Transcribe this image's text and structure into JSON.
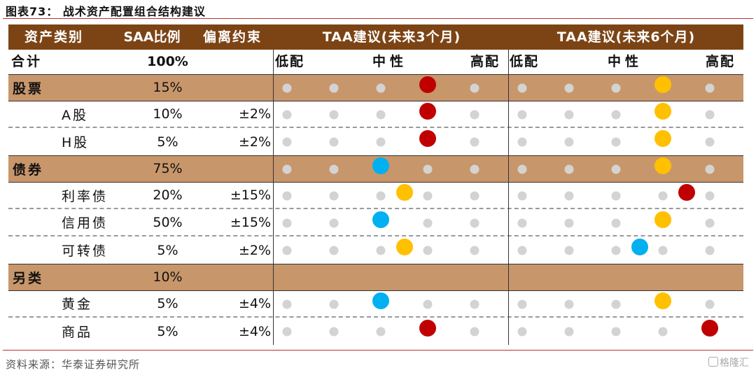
{
  "title": "图表73：  战术资产配置组合结构建议",
  "source": "资料来源：华泰证券研究所",
  "watermark": "格隆汇",
  "colors": {
    "header_bg": "#7c4415",
    "group_bg": "#c8966b",
    "red": "#c00000",
    "orange": "#ffc000",
    "blue": "#00b0f0",
    "grey": "#d3d3d3"
  },
  "header": {
    "col_category": "资产类别",
    "col_saa": "SAA比例",
    "col_deviation": "偏离约束",
    "col_taa3": "TAA建议(未来3个月)",
    "col_taa6": "TAA建议(未来6个月)"
  },
  "subheader": {
    "total_label": "合计",
    "total_value": "100%",
    "taa3": {
      "low": "低配",
      "mid": "中性",
      "high": "高配"
    },
    "taa6": {
      "low": "低配",
      "mid": "中性",
      "high": "高配"
    }
  },
  "rows": [
    {
      "name": "股票",
      "group": true,
      "saa": "15%",
      "dev": "",
      "taa3": {
        "pos": 3,
        "color": "red"
      },
      "taa6": {
        "pos": 3,
        "color": "orange"
      }
    },
    {
      "name": "A股",
      "group": false,
      "saa": "10%",
      "dev": "±2%",
      "taa3": {
        "pos": 3,
        "color": "red"
      },
      "taa6": {
        "pos": 3,
        "color": "orange"
      }
    },
    {
      "name": "H股",
      "group": false,
      "saa": "5%",
      "dev": "±2%",
      "taa3": {
        "pos": 3,
        "color": "red"
      },
      "taa6": {
        "pos": 3,
        "color": "orange"
      }
    },
    {
      "name": "债券",
      "group": true,
      "saa": "75%",
      "dev": "",
      "taa3": {
        "pos": 2,
        "color": "blue"
      },
      "taa6": {
        "pos": 3,
        "color": "orange"
      }
    },
    {
      "name": "利率债",
      "group": false,
      "saa": "20%",
      "dev": "±15%",
      "taa3": {
        "pos": 2.5,
        "color": "orange"
      },
      "taa6": {
        "pos": 3.5,
        "color": "red"
      }
    },
    {
      "name": "信用债",
      "group": false,
      "saa": "50%",
      "dev": "±15%",
      "taa3": {
        "pos": 2,
        "color": "blue"
      },
      "taa6": {
        "pos": 3,
        "color": "orange"
      }
    },
    {
      "name": "可转债",
      "group": false,
      "saa": "5%",
      "dev": "±2%",
      "taa3": {
        "pos": 2.5,
        "color": "orange"
      },
      "taa6": {
        "pos": 2.5,
        "color": "blue"
      }
    },
    {
      "name": "另类",
      "group": true,
      "saa": "10%",
      "dev": "",
      "taa3": null,
      "taa6": null
    },
    {
      "name": "黄金",
      "group": false,
      "saa": "5%",
      "dev": "±4%",
      "taa3": {
        "pos": 2,
        "color": "blue"
      },
      "taa6": {
        "pos": 3,
        "color": "orange"
      }
    },
    {
      "name": "商品",
      "group": false,
      "saa": "5%",
      "dev": "±4%",
      "taa3": {
        "pos": 3,
        "color": "red"
      },
      "taa6": {
        "pos": 4,
        "color": "red"
      }
    }
  ]
}
